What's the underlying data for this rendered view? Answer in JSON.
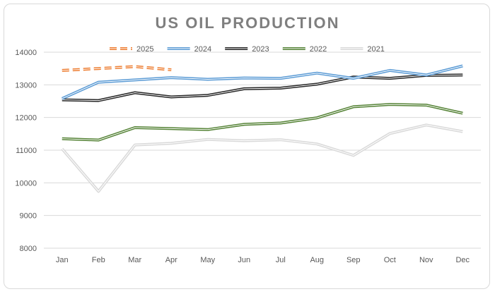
{
  "chart_data": {
    "type": "line",
    "title": "US OIL PRODUCTION",
    "xlabel": "",
    "ylabel": "",
    "categories": [
      "Jan",
      "Feb",
      "Mar",
      "Apr",
      "May",
      "Jun",
      "Jul",
      "Aug",
      "Sep",
      "Oct",
      "Nov",
      "Dec"
    ],
    "ylim": [
      8000,
      14000
    ],
    "yticks": [
      8000,
      9000,
      10000,
      11000,
      12000,
      13000,
      14000
    ],
    "grid": "horizontal",
    "legend_position": "top",
    "series": [
      {
        "name": "2025",
        "color": "#ed7d31",
        "dashed": true,
        "values": [
          13440,
          13500,
          13560,
          13460,
          null,
          null,
          null,
          null,
          null,
          null,
          null,
          null
        ]
      },
      {
        "name": "2024",
        "color": "#5b9bd5",
        "dashed": false,
        "values": [
          12580,
          13080,
          13150,
          13220,
          13170,
          13210,
          13200,
          13360,
          13200,
          13440,
          13300,
          13580
        ]
      },
      {
        "name": "2023",
        "color": "#262626",
        "dashed": false,
        "values": [
          12540,
          12520,
          12760,
          12630,
          12680,
          12880,
          12900,
          13020,
          13240,
          13200,
          13290,
          13300
        ]
      },
      {
        "name": "2022",
        "color": "#548235",
        "dashed": false,
        "values": [
          11350,
          11310,
          11690,
          11660,
          11630,
          11790,
          11830,
          11990,
          12330,
          12400,
          12380,
          12130
        ]
      },
      {
        "name": "2021",
        "color": "#d9d9d9",
        "dashed": false,
        "values": [
          11040,
          9740,
          11160,
          11210,
          11330,
          11290,
          11320,
          11190,
          10840,
          11510,
          11770,
          11570
        ]
      }
    ]
  }
}
